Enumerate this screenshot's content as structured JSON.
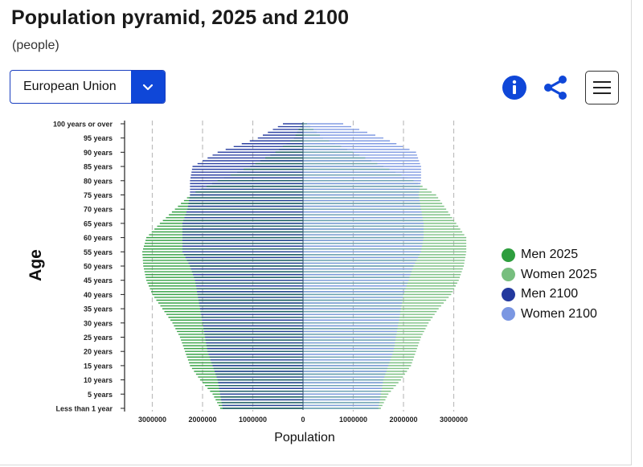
{
  "header": {
    "title": "Population pyramid, 2025 and 2100",
    "subtitle": "(people)"
  },
  "controls": {
    "region_selected": "European Union",
    "icons": [
      "chevron-down-icon",
      "info-icon",
      "share-icon",
      "menu-icon"
    ]
  },
  "legend": {
    "placement": "right",
    "items": [
      {
        "label": "Men 2025",
        "color": "#2e9e3e"
      },
      {
        "label": "Women 2025",
        "color": "#77be7e"
      },
      {
        "label": "Men 2100",
        "color": "#23399e"
      },
      {
        "label": "Women 2100",
        "color": "#7b97e2"
      }
    ]
  },
  "chart_data": {
    "type": "bar",
    "orientation": "horizontal-pyramid",
    "ylabel": "Age",
    "xlabel": "Population",
    "x_ticks": [
      "3000000",
      "2000000",
      "1000000",
      "0",
      "1000000",
      "2000000",
      "3000000"
    ],
    "xlim": [
      -3000000,
      3000000
    ],
    "y_tick_labels": [
      "100 years or over",
      "95 years",
      "90 years",
      "85 years",
      "80 years",
      "75 years",
      "70 years",
      "65 years",
      "60 years",
      "55 years",
      "50 years",
      "45 years",
      "40 years",
      "35 years",
      "30 years",
      "25 years",
      "20 years",
      "15 years",
      "10 years",
      "5 years",
      "Less than 1 year"
    ],
    "age_range": [
      0,
      100
    ],
    "grid": "dashed vertical",
    "series": [
      {
        "name": "Men 2025",
        "color": "#2e9e3e",
        "profile": [
          [
            0,
            1650000
          ],
          [
            5,
            1800000
          ],
          [
            10,
            2050000
          ],
          [
            15,
            2250000
          ],
          [
            20,
            2350000
          ],
          [
            25,
            2450000
          ],
          [
            30,
            2600000
          ],
          [
            35,
            2800000
          ],
          [
            40,
            3000000
          ],
          [
            45,
            3120000
          ],
          [
            50,
            3180000
          ],
          [
            55,
            3200000
          ],
          [
            60,
            3120000
          ],
          [
            65,
            2850000
          ],
          [
            70,
            2550000
          ],
          [
            75,
            2250000
          ],
          [
            80,
            1700000
          ],
          [
            85,
            1050000
          ],
          [
            90,
            550000
          ],
          [
            95,
            180000
          ],
          [
            100,
            25000
          ]
        ]
      },
      {
        "name": "Women 2025",
        "color": "#77be7e",
        "profile": [
          [
            0,
            1550000
          ],
          [
            5,
            1700000
          ],
          [
            10,
            1950000
          ],
          [
            15,
            2150000
          ],
          [
            20,
            2250000
          ],
          [
            25,
            2350000
          ],
          [
            30,
            2500000
          ],
          [
            35,
            2700000
          ],
          [
            40,
            2950000
          ],
          [
            45,
            3100000
          ],
          [
            50,
            3200000
          ],
          [
            55,
            3250000
          ],
          [
            60,
            3250000
          ],
          [
            65,
            3050000
          ],
          [
            70,
            2850000
          ],
          [
            75,
            2650000
          ],
          [
            80,
            2200000
          ],
          [
            85,
            1600000
          ],
          [
            90,
            1000000
          ],
          [
            95,
            400000
          ],
          [
            100,
            80000
          ]
        ]
      },
      {
        "name": "Men 2100",
        "color": "#23399e",
        "profile": [
          [
            0,
            1600000
          ],
          [
            5,
            1650000
          ],
          [
            10,
            1700000
          ],
          [
            15,
            1800000
          ],
          [
            20,
            1900000
          ],
          [
            25,
            1950000
          ],
          [
            30,
            2000000
          ],
          [
            35,
            2050000
          ],
          [
            40,
            2100000
          ],
          [
            45,
            2150000
          ],
          [
            50,
            2250000
          ],
          [
            55,
            2400000
          ],
          [
            60,
            2400000
          ],
          [
            65,
            2400000
          ],
          [
            70,
            2300000
          ],
          [
            75,
            2250000
          ],
          [
            80,
            2250000
          ],
          [
            85,
            2200000
          ],
          [
            90,
            1700000
          ],
          [
            95,
            900000
          ],
          [
            100,
            400000
          ]
        ]
      },
      {
        "name": "Women 2100",
        "color": "#7b97e2",
        "profile": [
          [
            0,
            1500000
          ],
          [
            5,
            1550000
          ],
          [
            10,
            1600000
          ],
          [
            15,
            1700000
          ],
          [
            20,
            1800000
          ],
          [
            25,
            1850000
          ],
          [
            30,
            1900000
          ],
          [
            35,
            1950000
          ],
          [
            40,
            2000000
          ],
          [
            45,
            2100000
          ],
          [
            50,
            2200000
          ],
          [
            55,
            2350000
          ],
          [
            60,
            2400000
          ],
          [
            65,
            2400000
          ],
          [
            70,
            2350000
          ],
          [
            75,
            2300000
          ],
          [
            80,
            2350000
          ],
          [
            85,
            2350000
          ],
          [
            90,
            2250000
          ],
          [
            95,
            1600000
          ],
          [
            100,
            800000
          ]
        ]
      }
    ]
  }
}
